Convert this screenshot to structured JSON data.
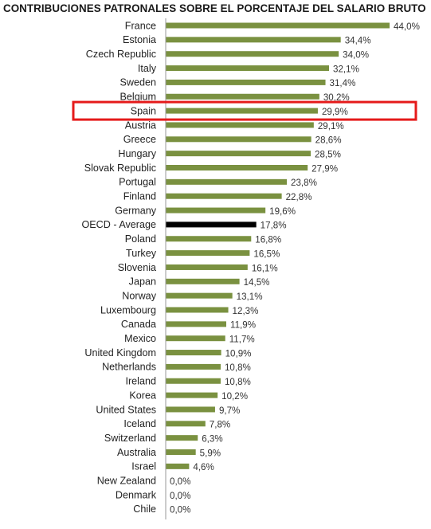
{
  "chart_data": {
    "type": "bar",
    "orientation": "horizontal",
    "title": "CONTRIBUCIONES PATRONALES SOBRE EL PORCENTAJE DEL SALARIO BRUTO",
    "categories": [
      "France",
      "Estonia",
      "Czech Republic",
      "Italy",
      "Sweden",
      "Belgium",
      "Spain",
      "Austria",
      "Greece",
      "Hungary",
      "Slovak Republic",
      "Portugal",
      "Finland",
      "Germany",
      "OECD - Average",
      "Poland",
      "Turkey",
      "Slovenia",
      "Japan",
      "Norway",
      "Luxembourg",
      "Canada",
      "Mexico",
      "United Kingdom",
      "Netherlands",
      "Ireland",
      "Korea",
      "United States",
      "Iceland",
      "Switzerland",
      "Australia",
      "Israel",
      "New Zealand",
      "Denmark",
      "Chile"
    ],
    "values": [
      44.0,
      34.4,
      34.0,
      32.1,
      31.4,
      30.2,
      29.9,
      29.1,
      28.6,
      28.5,
      27.9,
      23.8,
      22.8,
      19.6,
      17.8,
      16.8,
      16.5,
      16.1,
      14.5,
      13.1,
      12.3,
      11.9,
      11.7,
      10.9,
      10.8,
      10.8,
      10.2,
      9.7,
      7.8,
      6.3,
      5.9,
      4.6,
      0.0,
      0.0,
      0.0
    ],
    "value_labels": [
      "44,0%",
      "34,4%",
      "34,0%",
      "32,1%",
      "31,4%",
      "30,2%",
      "29,9%",
      "29,1%",
      "28,6%",
      "28,5%",
      "27,9%",
      "23,8%",
      "22,8%",
      "19,6%",
      "17,8%",
      "16,8%",
      "16,5%",
      "16,1%",
      "14,5%",
      "13,1%",
      "12,3%",
      "11,9%",
      "11,7%",
      "10,9%",
      "10,8%",
      "10,8%",
      "10,2%",
      "9,7%",
      "7,8%",
      "6,3%",
      "5,9%",
      "4,6%",
      "0,0%",
      "0,0%",
      "0,0%"
    ],
    "xlim": [
      0,
      44
    ],
    "grid": false,
    "legend": "none",
    "colors": {
      "bar": "#7a9140",
      "average_bar": "#000000",
      "highlight_box": "#e51a1a"
    },
    "average_category": "OECD - Average",
    "highlight_category": "Spain"
  }
}
